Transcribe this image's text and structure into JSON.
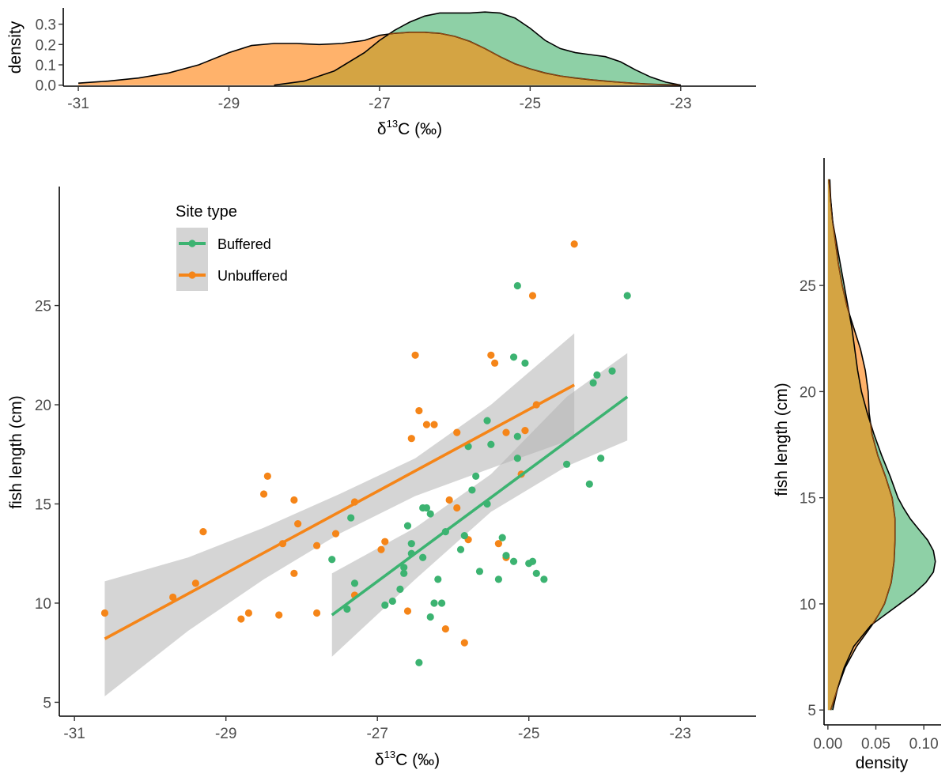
{
  "colors": {
    "buffered": "#3CB371",
    "unbuffered": "#F58518",
    "buffered_density": "#8ED0A6",
    "unbuffered_density": "#FFB26B",
    "overlap_density": "#D4A443",
    "ribbon": "#cfcfcf"
  },
  "chart_data": [
    {
      "id": "top-density",
      "type": "area",
      "xlabel_main": "δ",
      "xlabel_sup": "13",
      "xlabel_tail": "C (‰)",
      "ylabel": "density",
      "xlim": [
        -31.2,
        -22.0
      ],
      "ylim": [
        -0.005,
        0.38
      ],
      "x_ticks": [
        -31,
        -29,
        -27,
        -25,
        -23
      ],
      "x_tick_labels": [
        "-31",
        "-29",
        "-27",
        "-25",
        "-23"
      ],
      "y_ticks": [
        0.0,
        0.1,
        0.2,
        0.3
      ],
      "y_tick_labels": [
        "0.0",
        "0.1",
        "0.2",
        "0.3"
      ],
      "series": [
        {
          "key": "buffered",
          "x": [
            -28.4,
            -28.0,
            -27.6,
            -27.2,
            -27.0,
            -26.8,
            -26.6,
            -26.4,
            -26.2,
            -26.0,
            -25.8,
            -25.6,
            -25.4,
            -25.2,
            -25.0,
            -24.8,
            -24.6,
            -24.4,
            -24.2,
            -24.0,
            -23.8,
            -23.6,
            -23.4,
            -23.2,
            -23.0
          ],
          "y": [
            0.0,
            0.02,
            0.07,
            0.16,
            0.22,
            0.27,
            0.31,
            0.34,
            0.355,
            0.355,
            0.355,
            0.36,
            0.355,
            0.33,
            0.28,
            0.22,
            0.18,
            0.16,
            0.15,
            0.14,
            0.115,
            0.075,
            0.04,
            0.015,
            0.0
          ]
        },
        {
          "key": "unbuffered",
          "x": [
            -31.0,
            -30.6,
            -30.2,
            -29.8,
            -29.4,
            -29.0,
            -28.7,
            -28.4,
            -28.1,
            -27.8,
            -27.5,
            -27.2,
            -27.0,
            -26.8,
            -26.6,
            -26.4,
            -26.2,
            -26.0,
            -25.8,
            -25.6,
            -25.4,
            -25.2,
            -25.0,
            -24.8,
            -24.6,
            -24.4,
            -24.2,
            -24.0,
            -23.8,
            -23.6,
            -23.4,
            -23.2,
            -23.0
          ],
          "y": [
            0.01,
            0.02,
            0.035,
            0.06,
            0.1,
            0.16,
            0.195,
            0.205,
            0.205,
            0.2,
            0.205,
            0.22,
            0.245,
            0.255,
            0.26,
            0.26,
            0.255,
            0.24,
            0.215,
            0.18,
            0.14,
            0.105,
            0.08,
            0.06,
            0.045,
            0.035,
            0.027,
            0.02,
            0.014,
            0.009,
            0.005,
            0.002,
            0.0
          ]
        }
      ]
    },
    {
      "id": "main-scatter",
      "type": "scatter",
      "xlabel_main": "δ",
      "xlabel_sup": "13",
      "xlabel_tail": "C (‰)",
      "ylabel": "fish length (cm)",
      "xlim": [
        -31.2,
        -22.0
      ],
      "ylim": [
        4.3,
        31.0
      ],
      "x_ticks": [
        -31,
        -29,
        -27,
        -25,
        -23
      ],
      "x_tick_labels": [
        "-31",
        "-29",
        "-27",
        "-25",
        "-23"
      ],
      "y_ticks": [
        5,
        10,
        15,
        20,
        25
      ],
      "y_tick_labels": [
        "5",
        "10",
        "15",
        "20",
        "25"
      ],
      "legend": {
        "title": "Site type",
        "position": "top-left",
        "entries": [
          {
            "key": "buffered",
            "label": "Buffered"
          },
          {
            "key": "unbuffered",
            "label": "Unbuffered"
          }
        ]
      },
      "series": [
        {
          "key": "buffered",
          "points": [
            [
              -27.6,
              12.2
            ],
            [
              -27.4,
              9.7
            ],
            [
              -27.35,
              14.3
            ],
            [
              -27.3,
              11.0
            ],
            [
              -26.9,
              9.9
            ],
            [
              -26.8,
              10.1
            ],
            [
              -26.7,
              10.7
            ],
            [
              -26.65,
              11.5
            ],
            [
              -26.65,
              11.8
            ],
            [
              -26.6,
              13.9
            ],
            [
              -26.55,
              13.0
            ],
            [
              -26.55,
              12.5
            ],
            [
              -26.45,
              7.0
            ],
            [
              -26.4,
              12.3
            ],
            [
              -26.4,
              14.8
            ],
            [
              -26.35,
              14.8
            ],
            [
              -26.3,
              14.5
            ],
            [
              -26.3,
              9.3
            ],
            [
              -26.25,
              10.0
            ],
            [
              -26.2,
              11.2
            ],
            [
              -26.15,
              10.0
            ],
            [
              -26.1,
              13.6
            ],
            [
              -25.9,
              12.7
            ],
            [
              -25.85,
              13.4
            ],
            [
              -25.8,
              17.9
            ],
            [
              -25.75,
              15.7
            ],
            [
              -25.7,
              16.4
            ],
            [
              -25.65,
              11.6
            ],
            [
              -25.55,
              15.0
            ],
            [
              -25.55,
              19.2
            ],
            [
              -25.5,
              18.0
            ],
            [
              -25.4,
              11.2
            ],
            [
              -25.35,
              13.3
            ],
            [
              -25.3,
              12.4
            ],
            [
              -25.2,
              12.1
            ],
            [
              -25.2,
              22.4
            ],
            [
              -25.15,
              17.3
            ],
            [
              -25.15,
              18.4
            ],
            [
              -25.15,
              26.0
            ],
            [
              -25.05,
              22.1
            ],
            [
              -25.0,
              12.0
            ],
            [
              -24.95,
              12.1
            ],
            [
              -24.9,
              11.5
            ],
            [
              -24.8,
              11.2
            ],
            [
              -24.5,
              17.0
            ],
            [
              -24.2,
              16.0
            ],
            [
              -24.15,
              21.1
            ],
            [
              -24.1,
              21.5
            ],
            [
              -24.05,
              17.3
            ],
            [
              -23.9,
              21.7
            ],
            [
              -23.7,
              25.5
            ]
          ],
          "fit": {
            "x": [
              -27.6,
              -23.7
            ],
            "y": [
              9.4,
              20.4
            ]
          },
          "band": {
            "x": [
              -27.6,
              -26.5,
              -25.5,
              -24.5,
              -23.7
            ],
            "lower": [
              7.3,
              11.2,
              14.6,
              16.9,
              18.2
            ],
            "upper": [
              11.5,
              13.8,
              16.5,
              20.4,
              22.6
            ]
          }
        },
        {
          "key": "unbuffered",
          "points": [
            [
              -30.6,
              9.5
            ],
            [
              -29.7,
              10.3
            ],
            [
              -29.4,
              11.0
            ],
            [
              -29.3,
              13.6
            ],
            [
              -28.8,
              9.2
            ],
            [
              -28.7,
              9.5
            ],
            [
              -28.5,
              15.5
            ],
            [
              -28.45,
              16.4
            ],
            [
              -28.3,
              9.4
            ],
            [
              -28.25,
              13.0
            ],
            [
              -28.1,
              11.5
            ],
            [
              -28.1,
              15.2
            ],
            [
              -28.05,
              14.0
            ],
            [
              -27.8,
              12.9
            ],
            [
              -27.8,
              9.5
            ],
            [
              -27.55,
              13.5
            ],
            [
              -27.3,
              10.4
            ],
            [
              -27.3,
              15.1
            ],
            [
              -26.95,
              12.7
            ],
            [
              -26.9,
              13.1
            ],
            [
              -26.6,
              9.6
            ],
            [
              -26.55,
              18.3
            ],
            [
              -26.5,
              22.5
            ],
            [
              -26.45,
              19.7
            ],
            [
              -26.35,
              19.0
            ],
            [
              -26.25,
              19.0
            ],
            [
              -26.1,
              8.7
            ],
            [
              -26.05,
              15.2
            ],
            [
              -25.95,
              14.8
            ],
            [
              -25.95,
              18.6
            ],
            [
              -25.85,
              8.0
            ],
            [
              -25.8,
              13.2
            ],
            [
              -25.5,
              22.5
            ],
            [
              -25.45,
              22.1
            ],
            [
              -25.4,
              13.0
            ],
            [
              -25.3,
              12.3
            ],
            [
              -25.3,
              18.6
            ],
            [
              -25.1,
              16.5
            ],
            [
              -25.05,
              18.7
            ],
            [
              -24.95,
              25.5
            ],
            [
              -24.9,
              20.0
            ],
            [
              -24.4,
              28.1
            ]
          ],
          "fit": {
            "x": [
              -30.6,
              -24.4
            ],
            "y": [
              8.2,
              21.0
            ]
          },
          "band": {
            "x": [
              -30.6,
              -29.5,
              -28.5,
              -27.5,
              -26.5,
              -25.5,
              -24.4
            ],
            "lower": [
              5.3,
              8.6,
              11.2,
              13.5,
              15.4,
              16.8,
              18.3
            ],
            "upper": [
              11.1,
              12.3,
              13.8,
              15.5,
              17.3,
              20.0,
              23.6
            ]
          }
        }
      ]
    },
    {
      "id": "right-density",
      "type": "area",
      "xlabel": "density",
      "ylabel": "fish length (cm)",
      "xlim": [
        -0.004,
        0.118
      ],
      "ylim": [
        4.3,
        31.0
      ],
      "x_ticks": [
        0.0,
        0.05,
        0.1
      ],
      "x_tick_labels": [
        "0.00",
        "0.05",
        "0.10"
      ],
      "y_ticks": [
        5,
        10,
        15,
        20,
        25
      ],
      "y_tick_labels": [
        "5",
        "10",
        "15",
        "20",
        "25"
      ],
      "series": [
        {
          "key": "buffered",
          "y": [
            5.0,
            6.0,
            7.0,
            8.0,
            9.0,
            9.5,
            10.0,
            10.5,
            11.0,
            11.5,
            12.0,
            12.5,
            13.0,
            13.5,
            14.0,
            14.5,
            15.0,
            16.0,
            17.0,
            18.0,
            19.0,
            20.0,
            21.0,
            22.0,
            23.0,
            24.0,
            25.0,
            26.0,
            27.0,
            28.0,
            29.0,
            30.0
          ],
          "x": [
            0.005,
            0.01,
            0.017,
            0.027,
            0.045,
            0.06,
            0.075,
            0.09,
            0.102,
            0.11,
            0.112,
            0.11,
            0.104,
            0.095,
            0.086,
            0.079,
            0.073,
            0.065,
            0.056,
            0.048,
            0.041,
            0.035,
            0.031,
            0.028,
            0.025,
            0.021,
            0.017,
            0.013,
            0.009,
            0.005,
            0.003,
            0.002
          ]
        },
        {
          "key": "unbuffered",
          "y": [
            5.0,
            6.0,
            7.0,
            8.0,
            9.0,
            9.5,
            10.0,
            11.0,
            12.0,
            13.0,
            14.0,
            15.0,
            16.0,
            17.0,
            18.0,
            19.0,
            20.0,
            21.0,
            22.0,
            23.0,
            24.0,
            25.0,
            26.0,
            27.0,
            28.0,
            29.0,
            30.0
          ],
          "x": [
            0.003,
            0.01,
            0.018,
            0.03,
            0.046,
            0.053,
            0.059,
            0.066,
            0.069,
            0.07,
            0.07,
            0.067,
            0.06,
            0.052,
            0.046,
            0.043,
            0.042,
            0.039,
            0.034,
            0.027,
            0.02,
            0.015,
            0.011,
            0.008,
            0.005,
            0.003,
            0.001
          ]
        }
      ]
    }
  ]
}
